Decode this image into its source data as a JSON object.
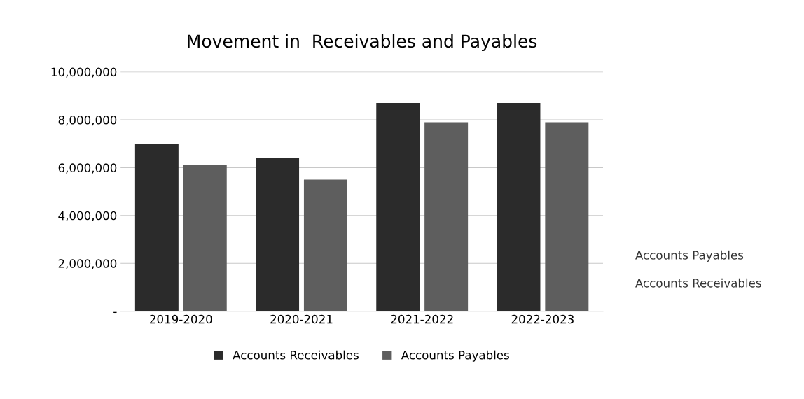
{
  "chart_data": {
    "type": "bar",
    "title": "Movement in  Receivables and Payables",
    "categories": [
      "2019-2020",
      "2020-2021",
      "2021-2022",
      "2022-2023"
    ],
    "series": [
      {
        "name": "Accounts Receivables",
        "color": "#2b2b2b",
        "values": [
          7000000,
          6400000,
          8700000,
          8700000
        ]
      },
      {
        "name": "Accounts Payables",
        "color": "#5e5e5e",
        "values": [
          6100000,
          5500000,
          7900000,
          7900000
        ]
      }
    ],
    "ylim": [
      0,
      10000000
    ],
    "yticks": [
      {
        "value": 0,
        "label": "-"
      },
      {
        "value": 2000000,
        "label": "2,000,000"
      },
      {
        "value": 4000000,
        "label": "4,000,000"
      },
      {
        "value": 6000000,
        "label": "6,000,000"
      },
      {
        "value": 8000000,
        "label": "8,000,000"
      },
      {
        "value": 10000000,
        "label": "10,000,000"
      }
    ],
    "annotations": [
      "Accounts Payables",
      "Accounts Receivables"
    ],
    "grid": "y",
    "legend": "bottom"
  }
}
